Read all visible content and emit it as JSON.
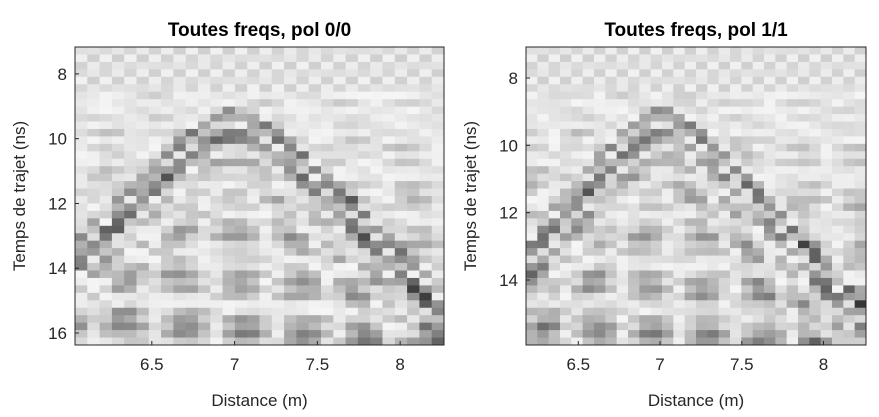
{
  "chart_data": [
    {
      "type": "radargram",
      "title": "Toutes freqs, pol 0/0",
      "xlabel": "Distance (m)",
      "ylabel": "Temps de trajet (ns)",
      "xlim": [
        6.036,
        8.265
      ],
      "xticks": [
        6.5,
        7,
        7.5,
        8
      ],
      "ylim": [
        7.17,
        16.37
      ],
      "yticks": [
        8,
        10,
        12,
        14,
        16
      ],
      "y_inverted": true
    },
    {
      "type": "radargram",
      "title": "Toutes freqs, pol 1/1",
      "xlabel": "Distance (m)",
      "ylabel": "Temps de trajet (ns)",
      "xlim": [
        6.18,
        8.26
      ],
      "xticks": [
        6.5,
        7,
        7.5,
        8
      ],
      "ylim": [
        7.08,
        15.93
      ],
      "yticks": [
        8,
        10,
        12,
        14
      ],
      "y_inverted": true
    }
  ]
}
